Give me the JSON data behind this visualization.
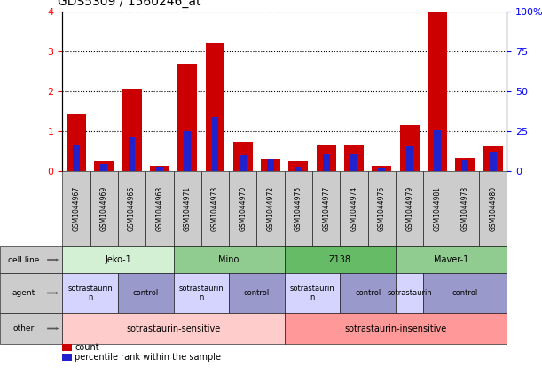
{
  "title": "GDS5309 / 1560246_at",
  "samples": [
    "GSM1044967",
    "GSM1044969",
    "GSM1044966",
    "GSM1044968",
    "GSM1044971",
    "GSM1044973",
    "GSM1044970",
    "GSM1044972",
    "GSM1044975",
    "GSM1044977",
    "GSM1044974",
    "GSM1044976",
    "GSM1044979",
    "GSM1044981",
    "GSM1044978",
    "GSM1044980"
  ],
  "count_values": [
    1.42,
    0.24,
    2.07,
    0.14,
    2.68,
    3.22,
    0.74,
    0.31,
    0.25,
    0.65,
    0.65,
    0.13,
    1.15,
    4.0,
    0.33,
    0.62
  ],
  "percentile_values": [
    0.65,
    0.18,
    0.87,
    0.1,
    1.0,
    1.35,
    0.4,
    0.3,
    0.12,
    0.42,
    0.42,
    0.07,
    0.62,
    1.02,
    0.27,
    0.47
  ],
  "ylim_left": [
    0,
    4
  ],
  "ylim_right": [
    0,
    100
  ],
  "yticks_left": [
    0,
    1,
    2,
    3,
    4
  ],
  "yticks_right": [
    0,
    25,
    50,
    75,
    100
  ],
  "bar_color_red": "#cc0000",
  "bar_color_blue": "#2222cc",
  "cell_lines": [
    {
      "label": "Jeko-1",
      "start": 0,
      "end": 3,
      "color": "#d4f0d4"
    },
    {
      "label": "Mino",
      "start": 4,
      "end": 7,
      "color": "#90cc90"
    },
    {
      "label": "Z138",
      "start": 8,
      "end": 11,
      "color": "#66bb66"
    },
    {
      "label": "Maver-1",
      "start": 12,
      "end": 15,
      "color": "#90cc90"
    }
  ],
  "agents": [
    {
      "label": "sotrastaurin\nn",
      "start": 0,
      "end": 1,
      "color": "#d4d4ff"
    },
    {
      "label": "control",
      "start": 2,
      "end": 3,
      "color": "#9999cc"
    },
    {
      "label": "sotrastaurin\nn",
      "start": 4,
      "end": 5,
      "color": "#d4d4ff"
    },
    {
      "label": "control",
      "start": 6,
      "end": 7,
      "color": "#9999cc"
    },
    {
      "label": "sotrastaurin\nn",
      "start": 8,
      "end": 9,
      "color": "#d4d4ff"
    },
    {
      "label": "control",
      "start": 10,
      "end": 11,
      "color": "#9999cc"
    },
    {
      "label": "sotrastaurin",
      "start": 12,
      "end": 12,
      "color": "#d4d4ff"
    },
    {
      "label": "control",
      "start": 13,
      "end": 15,
      "color": "#9999cc"
    }
  ],
  "others": [
    {
      "label": "sotrastaurin-sensitive",
      "start": 0,
      "end": 7,
      "color": "#ffcccc"
    },
    {
      "label": "sotrastaurin-insensitive",
      "start": 8,
      "end": 15,
      "color": "#ff9999"
    }
  ],
  "row_labels": [
    "cell line",
    "agent",
    "other"
  ],
  "legend_items": [
    {
      "color": "#cc0000",
      "label": "count"
    },
    {
      "color": "#2222cc",
      "label": "percentile rank within the sample"
    }
  ],
  "label_box_color": "#cccccc",
  "sample_box_color": "#cccccc"
}
